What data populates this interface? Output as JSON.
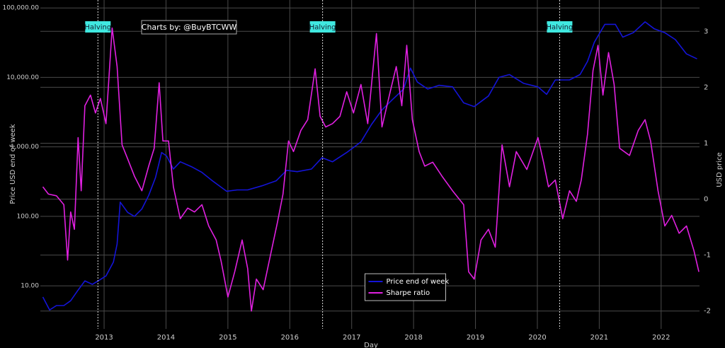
{
  "chart_data": {
    "type": "line",
    "xlabel": "Day",
    "ylabel": "Price USD end of week",
    "y2label": "USD price",
    "watermark": "Charts by: @BuyBTCWW",
    "xlim": [
      2011.97,
      2022.62
    ],
    "xticks": [
      2013,
      2014,
      2015,
      2016,
      2017,
      2018,
      2019,
      2020,
      2021,
      2022
    ],
    "ylim": [
      2.4,
      130000
    ],
    "ylog": true,
    "yticks": [
      {
        "value": 10,
        "label": "10.00"
      },
      {
        "value": 100,
        "label": "100.00"
      },
      {
        "value": 1000,
        "label": "1,000.00"
      },
      {
        "value": 10000,
        "label": "10,000.00"
      },
      {
        "value": 100000,
        "label": "100,000.00"
      }
    ],
    "y2lim": [
      -2.32,
      3.56
    ],
    "y2ticks": [
      -2,
      -1,
      0,
      1,
      2,
      3
    ],
    "grid": true,
    "legend": "lower center",
    "annotations": [
      {
        "x": 2012.9,
        "label": "Halving"
      },
      {
        "x": 2016.53,
        "label": "Halving"
      },
      {
        "x": 2020.36,
        "label": "Halving"
      }
    ],
    "series": [
      {
        "name": "Price end of week",
        "color": "#1414d8",
        "x": [
          2012.01,
          2012.12,
          2012.23,
          2012.35,
          2012.46,
          2012.58,
          2012.69,
          2012.81,
          2012.92,
          2013.03,
          2013.15,
          2013.21,
          2013.26,
          2013.38,
          2013.49,
          2013.61,
          2013.72,
          2013.83,
          2013.93,
          2014.01,
          2014.12,
          2014.23,
          2014.41,
          2014.58,
          2014.75,
          2014.98,
          2015.15,
          2015.32,
          2015.55,
          2015.78,
          2015.95,
          2016.12,
          2016.35,
          2016.52,
          2016.69,
          2016.92,
          2017.15,
          2017.32,
          2017.49,
          2017.66,
          2017.84,
          2017.95,
          2018.06,
          2018.23,
          2018.41,
          2018.63,
          2018.81,
          2018.98,
          2019.21,
          2019.38,
          2019.55,
          2019.78,
          2020.01,
          2020.15,
          2020.29,
          2020.52,
          2020.69,
          2020.81,
          2020.92,
          2021.09,
          2021.26,
          2021.38,
          2021.55,
          2021.74,
          2021.89,
          2022.06,
          2022.23,
          2022.41,
          2022.58
        ],
        "values": [
          6.9,
          4.5,
          5.2,
          5.2,
          6.1,
          8.7,
          11.8,
          10.5,
          12,
          13.9,
          22,
          40,
          160,
          114,
          100,
          128,
          200,
          360,
          830,
          740,
          480,
          610,
          520,
          430,
          325,
          230,
          240,
          240,
          275,
          325,
          460,
          440,
          480,
          700,
          610,
          830,
          1180,
          2100,
          3400,
          4800,
          6800,
          13600,
          8600,
          6800,
          7700,
          7300,
          4300,
          3800,
          5400,
          10000,
          11000,
          8200,
          7300,
          5700,
          9200,
          9200,
          11000,
          17000,
          32000,
          58000,
          58000,
          38000,
          44000,
          63000,
          50000,
          44000,
          35000,
          21800,
          18500
        ]
      },
      {
        "name": "Sharpe ratio",
        "color": "#e020e0",
        "axis": "y2",
        "x": [
          2012.01,
          2012.1,
          2012.23,
          2012.35,
          2012.41,
          2012.46,
          2012.52,
          2012.58,
          2012.63,
          2012.69,
          2012.78,
          2012.86,
          2012.94,
          2013.03,
          2013.13,
          2013.21,
          2013.29,
          2013.38,
          2013.49,
          2013.61,
          2013.72,
          2013.81,
          2013.89,
          2013.95,
          2014.04,
          2014.12,
          2014.23,
          2014.35,
          2014.46,
          2014.58,
          2014.69,
          2014.81,
          2014.89,
          2015.0,
          2015.11,
          2015.23,
          2015.32,
          2015.38,
          2015.46,
          2015.57,
          2015.69,
          2015.8,
          2015.89,
          2015.98,
          2016.06,
          2016.18,
          2016.29,
          2016.41,
          2016.49,
          2016.58,
          2016.69,
          2016.81,
          2016.92,
          2017.03,
          2017.15,
          2017.26,
          2017.4,
          2017.49,
          2017.61,
          2017.72,
          2017.81,
          2017.89,
          2017.98,
          2018.09,
          2018.18,
          2018.31,
          2018.46,
          2018.63,
          2018.81,
          2018.89,
          2018.98,
          2019.09,
          2019.21,
          2019.32,
          2019.43,
          2019.55,
          2019.66,
          2019.83,
          2020.01,
          2020.1,
          2020.18,
          2020.29,
          2020.41,
          2020.52,
          2020.63,
          2020.71,
          2020.81,
          2020.9,
          2020.98,
          2021.06,
          2021.15,
          2021.24,
          2021.33,
          2021.49,
          2021.63,
          2021.74,
          2021.83,
          2021.95,
          2022.06,
          2022.17,
          2022.29,
          2022.41,
          2022.53,
          2022.61
        ],
        "values": [
          0.22,
          0.09,
          0.06,
          -0.1,
          -1.09,
          -0.23,
          -0.54,
          1.1,
          0.15,
          1.67,
          1.86,
          1.54,
          1.8,
          1.35,
          3.06,
          2.37,
          0.97,
          0.72,
          0.41,
          0.15,
          0.59,
          0.91,
          2.08,
          1.04,
          1.04,
          0.22,
          -0.35,
          -0.16,
          -0.23,
          -0.1,
          -0.48,
          -0.73,
          -1.11,
          -1.75,
          -1.3,
          -0.73,
          -1.24,
          -2.0,
          -1.43,
          -1.62,
          -0.99,
          -0.42,
          0.09,
          1.04,
          0.85,
          1.23,
          1.42,
          2.33,
          1.48,
          1.29,
          1.35,
          1.48,
          1.92,
          1.54,
          2.05,
          1.35,
          2.96,
          1.29,
          1.86,
          2.37,
          1.67,
          2.75,
          1.42,
          0.85,
          0.59,
          0.66,
          0.41,
          0.15,
          -0.1,
          -1.3,
          -1.43,
          -0.73,
          -0.54,
          -0.86,
          0.97,
          0.22,
          0.85,
          0.53,
          1.1,
          0.66,
          0.22,
          0.34,
          -0.35,
          0.15,
          -0.04,
          0.34,
          1.16,
          2.3,
          2.75,
          1.86,
          2.62,
          2.05,
          0.91,
          0.78,
          1.23,
          1.42,
          1.04,
          0.15,
          -0.48,
          -0.29,
          -0.61,
          -0.48,
          -0.92,
          -1.3
        ]
      }
    ]
  }
}
